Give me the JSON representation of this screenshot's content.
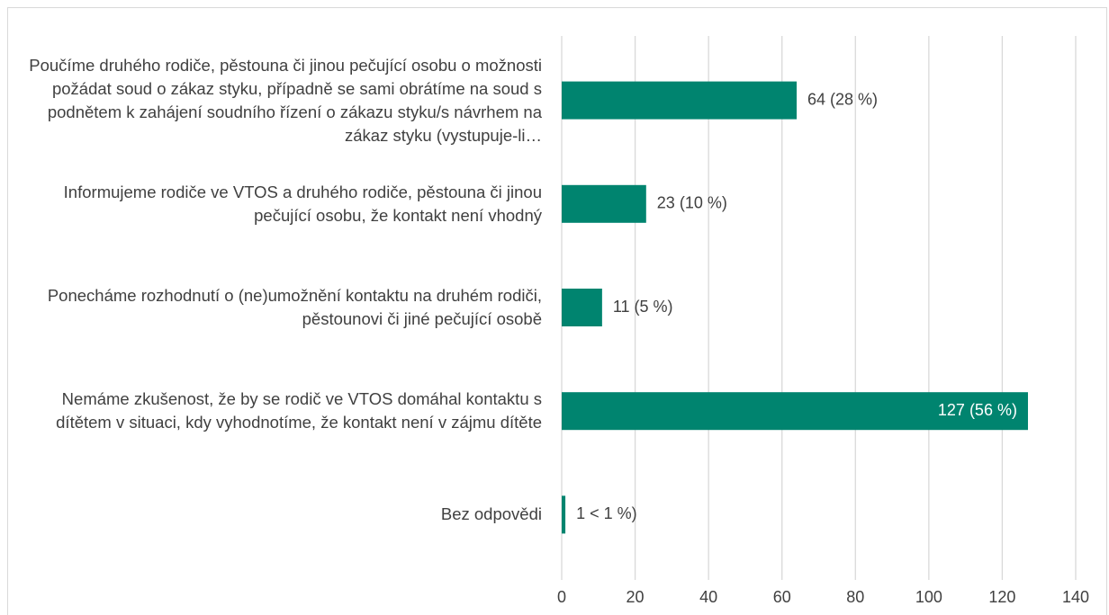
{
  "chart_data": {
    "type": "bar",
    "orientation": "horizontal",
    "categories": [
      "Poučíme druhého rodiče, pěstouna či jinou pečující osobu o možnosti požádat soud o zákaz styku, případně se sami obrátíme na soud s podnětem k zahájení soudního řízení o zákazu styku/s návrhem na zákaz styku (vystupuje-li…",
      "Informujeme rodiče ve VTOS a druhého rodiče, pěstouna či jinou pečující osobu, že kontakt není vhodný",
      "Ponecháme rozhodnutí o (ne)umožnění kontaktu na druhém rodiči, pěstounovi či jiné pečující osobě",
      "Nemáme zkušenost, že by se rodič ve VTOS domáhal kontaktu s dítětem v situaci, kdy vyhodnotíme, že kontakt není v zájmu dítěte",
      "Bez odpovědi"
    ],
    "values": [
      64,
      23,
      11,
      127,
      1
    ],
    "value_labels": [
      "64 (28 %)",
      "23 (10 %)",
      "11 (5 %)",
      "127 (56 %)",
      "1 < 1 %)"
    ],
    "color": "#00846f",
    "xlim": [
      0,
      140
    ],
    "xticks": [
      0,
      20,
      40,
      60,
      80,
      100,
      120,
      140
    ],
    "grid": true
  }
}
